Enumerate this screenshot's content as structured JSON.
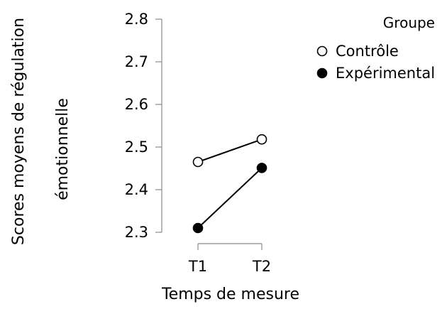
{
  "chart_data": {
    "type": "line",
    "categories": [
      "T1",
      "T2"
    ],
    "xlabel": "Temps de mesure",
    "ylabel": [
      "Scores moyens de régulation",
      "émotionnelle"
    ],
    "ylim": [
      2.3,
      2.8
    ],
    "yticks": [
      "2.8",
      "2.7",
      "2.6",
      "2.5",
      "2.4",
      "2.3"
    ],
    "ytick_values": [
      2.8,
      2.7,
      2.6,
      2.5,
      2.4,
      2.3
    ],
    "grid": false,
    "legend": {
      "title": "Groupe",
      "placement": "top-right"
    },
    "series": [
      {
        "name": "Contrôle",
        "values": [
          2.465,
          2.518
        ],
        "marker": "open-circle",
        "color": "#000000"
      },
      {
        "name": "Expérimental",
        "values": [
          2.31,
          2.451
        ],
        "marker": "filled-circle",
        "color": "#000000"
      }
    ]
  }
}
